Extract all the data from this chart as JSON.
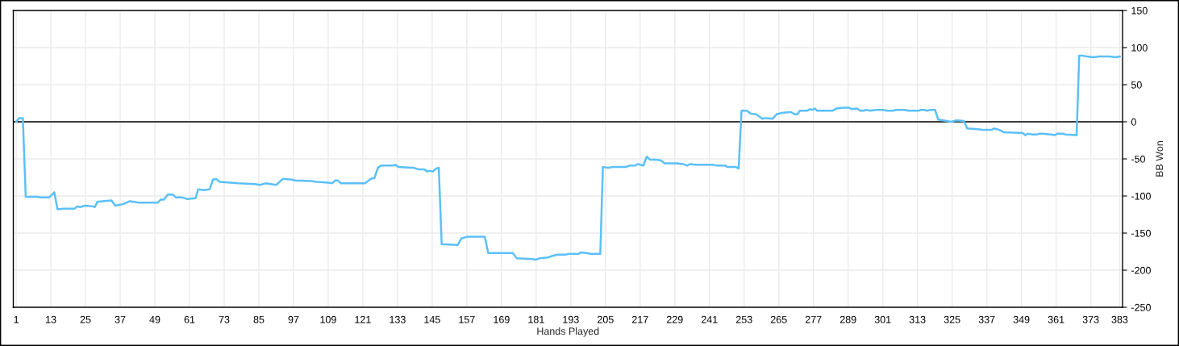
{
  "chart_data": {
    "type": "line",
    "xlabel": "Hands Played",
    "ylabel": "BB Won",
    "xlim": [
      0,
      384
    ],
    "ylim": [
      -250,
      150
    ],
    "xticks": [
      1,
      13,
      25,
      37,
      49,
      61,
      73,
      85,
      97,
      109,
      121,
      133,
      145,
      157,
      169,
      181,
      193,
      205,
      217,
      229,
      241,
      253,
      265,
      277,
      289,
      301,
      313,
      325,
      337,
      349,
      361,
      373,
      383
    ],
    "yticks": [
      -250,
      -200,
      -150,
      -100,
      -50,
      0,
      50,
      100,
      150
    ],
    "grid": true,
    "marker": "none",
    "line_style": "solid",
    "ref_lines": [
      {
        "axis": "y",
        "value": 0,
        "color": "#000000"
      }
    ],
    "series": [
      {
        "color": "#5bc0f8",
        "x": [
          1,
          2,
          3.3,
          4.3,
          8.2,
          9.6,
          12.4,
          14.2,
          15.3,
          17.5,
          21.2,
          22.1,
          23.1,
          24.9,
          27.7,
          28.2,
          29.1,
          31,
          34,
          35.3,
          38,
          40.3,
          43.5,
          50,
          51,
          52.1,
          53.5,
          55.2,
          56.3,
          58.4,
          60.3,
          63.1,
          64,
          65.9,
          68,
          69.1,
          70.1,
          71.5,
          75.2,
          78,
          83.6,
          85.4,
          87.3,
          91,
          93.3,
          96.6,
          97.5,
          103.1,
          105,
          109.2,
          110.3,
          111.5,
          112.4,
          113.4,
          117.1,
          121.7,
          124.1,
          125,
          126.2,
          127.3,
          131.5,
          132.2,
          133.4,
          138.5,
          140.3,
          142.2,
          143.3,
          144.1,
          145.2,
          146.4,
          147.3,
          148.3,
          153.8,
          155.2,
          157.1,
          163.2,
          164.4,
          172.9,
          174.3,
          179.9,
          180.8,
          182.2,
          185,
          186.4,
          188.3,
          191.1,
          192.3,
          195.7,
          196.4,
          198.5,
          199.9,
          203.2,
          204.1,
          206,
          207.4,
          212,
          213.4,
          215.3,
          216.2,
          218.1,
          219.3,
          220.4,
          222.3,
          224.1,
          225.5,
          229.7,
          232,
          233.2,
          234.4,
          236.2,
          237.2,
          242.3,
          243.7,
          246.5,
          247.2,
          250.2,
          251.1,
          252.1,
          253.9,
          255.3,
          257.2,
          259.3,
          260.4,
          262.8,
          264.2,
          266,
          268.8,
          269.3,
          270.5,
          271.4,
          272.3,
          274.9,
          275.8,
          276.7,
          277.4,
          278.3,
          283.7,
          285.1,
          287.4,
          289.3,
          290.2,
          292.1,
          293.2,
          294.4,
          295.3,
          296.7,
          298.6,
          301.4,
          302.3,
          304.6,
          305.6,
          308.4,
          309.8,
          313.5,
          314.2,
          315.3,
          316.3,
          317.7,
          319.1,
          320.2,
          321.9,
          324.7,
          326.5,
          329.1,
          330.2,
          334,
          335.8,
          338.6,
          339.5,
          341.4,
          342.8,
          348.4,
          349.3,
          350.3,
          351.2,
          352.6,
          354.4,
          355.4,
          356.3,
          359.1,
          360.5,
          361.4,
          363.3,
          364.2,
          368.1,
          369,
          370.3,
          371.7,
          374,
          375.9,
          379.6,
          381.4,
          383.1
        ],
        "values": [
          0,
          5,
          5,
          -101,
          -101,
          -102,
          -102,
          -95,
          -118,
          -117,
          -117,
          -114,
          -115,
          -113,
          -114,
          -115,
          -108,
          -107,
          -106,
          -113,
          -111,
          -107,
          -109,
          -109,
          -105,
          -105,
          -98,
          -98,
          -102,
          -102,
          -104,
          -103,
          -91,
          -92,
          -91,
          -78,
          -77,
          -81,
          -82,
          -83,
          -84,
          -85,
          -83,
          -85,
          -77,
          -78,
          -79,
          -80,
          -81,
          -82,
          -83,
          -79,
          -79,
          -83,
          -83,
          -83,
          -76,
          -76,
          -62,
          -59,
          -59,
          -58,
          -61,
          -62,
          -64,
          -64,
          -67,
          -66,
          -67,
          -63,
          -62,
          -165,
          -166,
          -157,
          -155,
          -155,
          -177,
          -177,
          -184,
          -185,
          -186,
          -184,
          -183,
          -181,
          -179,
          -179,
          -178,
          -178,
          -176,
          -177,
          -178,
          -178,
          -61,
          -62,
          -61,
          -61,
          -59,
          -59,
          -57,
          -59,
          -47,
          -51,
          -51,
          -52,
          -56,
          -56,
          -57,
          -59,
          -57,
          -58,
          -58,
          -58,
          -59,
          -59,
          -61,
          -61,
          -63,
          15,
          15,
          11,
          10,
          4,
          5,
          4,
          10,
          12,
          13,
          13,
          10,
          10,
          15,
          15,
          17,
          16,
          18,
          15,
          15,
          18,
          19,
          19,
          17,
          18,
          15,
          15,
          16,
          15,
          16,
          16,
          15,
          15,
          16,
          16,
          15,
          15,
          16,
          16,
          15,
          16,
          16,
          3,
          2,
          0,
          2,
          1,
          -9,
          -10,
          -11,
          -11,
          -9,
          -11,
          -14,
          -15,
          -15,
          -18,
          -16,
          -17,
          -17,
          -16,
          -16,
          -17,
          -18,
          -16,
          -16,
          -17,
          -18,
          89,
          89,
          88,
          87,
          88,
          88,
          87,
          88
        ]
      }
    ]
  }
}
